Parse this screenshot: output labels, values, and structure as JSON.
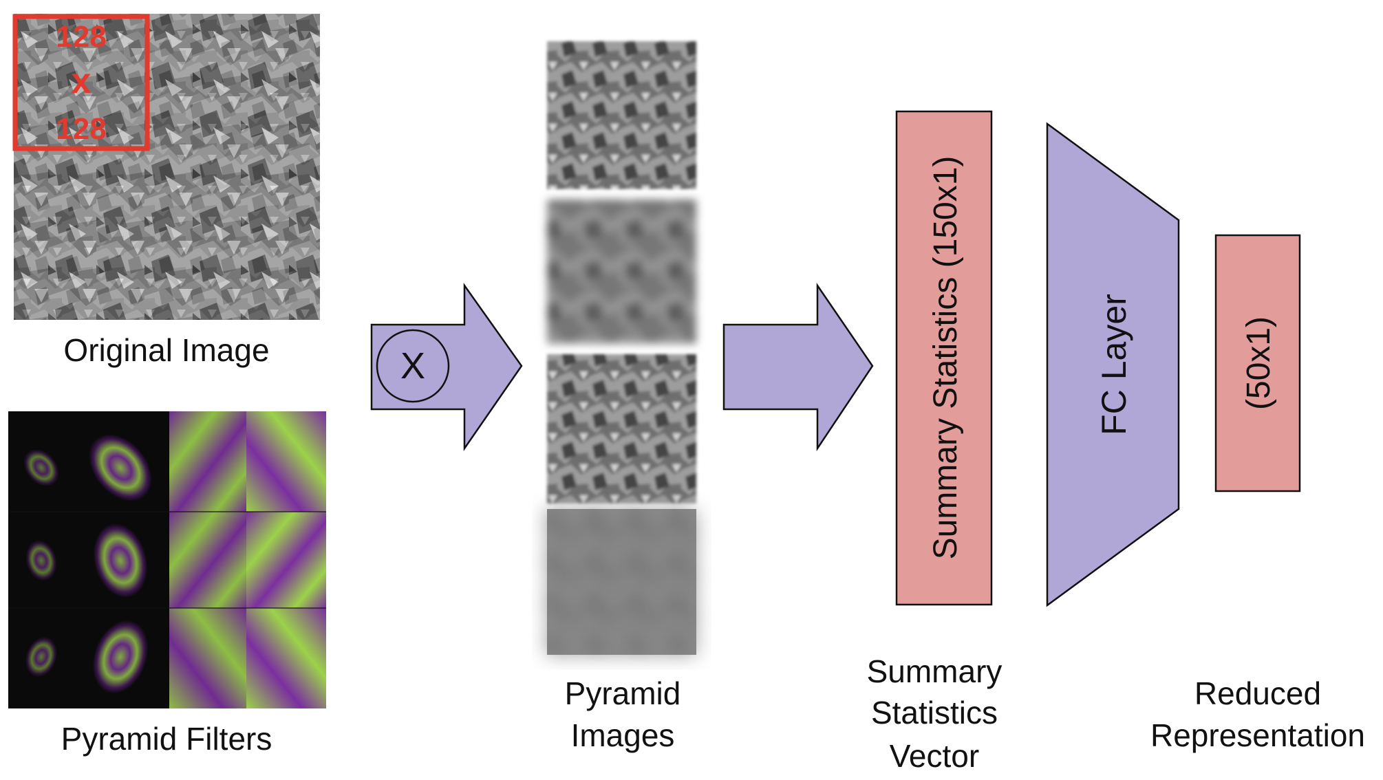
{
  "colors": {
    "arrow_fill": "#b0a7d6",
    "stat_box_fill": "#e29c99",
    "crop_box": "#e23a2e",
    "filter_green": "#9cd24a",
    "filter_purple": "#7b2fa0"
  },
  "original_image": {
    "label": "Original Image",
    "crop": {
      "line1": "128",
      "line2": "x",
      "line3": "128"
    }
  },
  "pyramid_filters": {
    "label": "Pyramid Filters"
  },
  "convolve_arrow": {
    "symbol": "X"
  },
  "pyramid_images": {
    "label_line1": "Pyramid",
    "label_line2": "Images"
  },
  "summary_box": {
    "text": "Summary Statistics (150x1)"
  },
  "summary_caption": {
    "line1": "Summary",
    "line2": "Statistics",
    "line3": "Vector"
  },
  "fc_layer": {
    "text": "FC Layer"
  },
  "reduced_box": {
    "text": "(50x1)"
  },
  "reduced_caption": {
    "line1": "Reduced",
    "line2": "Representation"
  }
}
